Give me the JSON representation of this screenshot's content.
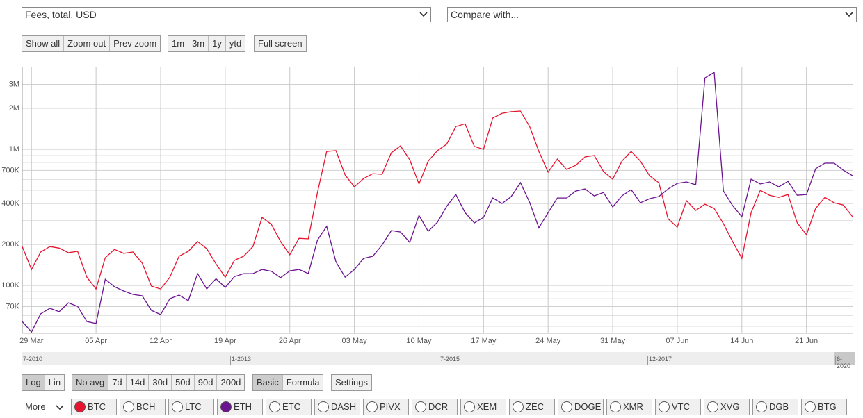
{
  "controls": {
    "metric": "Fees, total, USD",
    "compare": "Compare with...",
    "zoom_buttons": [
      "Show all",
      "Zoom out",
      "Prev zoom"
    ],
    "period_buttons": [
      "1m",
      "3m",
      "1y",
      "ytd"
    ],
    "fullscreen": "Full screen",
    "scale_buttons": [
      "Log",
      "Lin"
    ],
    "avg_buttons": [
      "No avg",
      "7d",
      "14d",
      "30d",
      "50d",
      "90d",
      "200d"
    ],
    "mode_buttons": [
      "Basic",
      "Formula"
    ],
    "settings": "Settings",
    "more": "More",
    "coins": [
      "BTC",
      "BCH",
      "LTC",
      "ETH",
      "ETC",
      "DASH",
      "PIVX",
      "DCR",
      "XEM",
      "ZEC",
      "DOGE",
      "XMR",
      "VTC",
      "XVG",
      "DGB",
      "BTG"
    ]
  },
  "navigator": {
    "labels": [
      "7-2010",
      "1-2013",
      "7-2015",
      "12-2017",
      "6-2020"
    ]
  },
  "chart_data": {
    "type": "line",
    "log_scale": true,
    "grid": true,
    "categories": [
      null,
      "29 Mar",
      null,
      null,
      null,
      null,
      null,
      null,
      "05 Apr",
      null,
      null,
      null,
      null,
      null,
      null,
      "12 Apr",
      null,
      null,
      null,
      null,
      null,
      null,
      "19 Apr",
      null,
      null,
      null,
      null,
      null,
      null,
      "26 Apr",
      null,
      null,
      null,
      null,
      null,
      null,
      "03 May",
      null,
      null,
      null,
      null,
      null,
      null,
      "10 May",
      null,
      null,
      null,
      null,
      null,
      null,
      "17 May",
      null,
      null,
      null,
      null,
      null,
      null,
      "24 May",
      null,
      null,
      null,
      null,
      null,
      null,
      "31 May",
      null,
      null,
      null,
      null,
      null,
      null,
      "07 Jun",
      null,
      null,
      null,
      null,
      null,
      null,
      "14 Jun",
      null,
      null,
      null,
      null,
      null,
      null,
      "21 Jun",
      null,
      null,
      null,
      null,
      null
    ],
    "ylim": [
      44500,
      4050000
    ],
    "yticks": [
      {
        "value": 70000,
        "label": "70K"
      },
      {
        "value": 100000,
        "label": "100K"
      },
      {
        "value": 200000,
        "label": "200K"
      },
      {
        "value": 400000,
        "label": "400K"
      },
      {
        "value": 700000,
        "label": "700K"
      },
      {
        "value": 1000000,
        "label": "1M"
      },
      {
        "value": 2000000,
        "label": "2M"
      },
      {
        "value": 3000000,
        "label": "3M"
      }
    ],
    "yminor": [
      50000,
      60000,
      80000,
      90000,
      300000,
      500000,
      600000,
      800000,
      900000
    ],
    "series": [
      {
        "name": "BTC",
        "color": "#e8132e",
        "values": [
          193000,
          131000,
          176000,
          193000,
          188000,
          174000,
          178000,
          115000,
          94300,
          160000,
          184000,
          172000,
          176000,
          146000,
          98900,
          94300,
          115000,
          164000,
          178000,
          210000,
          186000,
          144000,
          115000,
          153000,
          164000,
          193000,
          316000,
          281000,
          210000,
          168000,
          222000,
          220000,
          482000,
          965000,
          977000,
          648000,
          530000,
          610000,
          663000,
          655000,
          943000,
          1060000,
          838000,
          556000,
          819000,
          977000,
          1090000,
          1470000,
          1540000,
          1050000,
          1000000,
          1700000,
          1840000,
          1890000,
          1910000,
          1470000,
          965000,
          679000,
          848000,
          712000,
          763000,
          879000,
          900000,
          687000,
          603000,
          819000,
          965000,
          819000,
          640000,
          569000,
          309000,
          268000,
          419000,
          356000,
          395000,
          368000,
          284000,
          210000,
          158000,
          343000,
          500000,
          460000,
          444000,
          466000,
          288000,
          236000,
          368000,
          444000,
          405000,
          390000,
          320000
        ]
      },
      {
        "name": "ETH",
        "color": "#6b1390",
        "values": [
          54300,
          45500,
          61800,
          67900,
          64100,
          74500,
          70300,
          54300,
          52500,
          111000,
          97800,
          91100,
          85900,
          83900,
          65600,
          61100,
          80000,
          84900,
          77300,
          122000,
          94300,
          112000,
          96700,
          116000,
          122000,
          122000,
          131000,
          127000,
          114000,
          128000,
          131000,
          122000,
          215000,
          272000,
          149000,
          115000,
          131000,
          158000,
          164000,
          198000,
          253000,
          247000,
          207000,
          327000,
          250000,
          291000,
          381000,
          466000,
          343000,
          288000,
          316000,
          439000,
          400000,
          450000,
          569000,
          407000,
          265000,
          343000,
          439000,
          439000,
          494000,
          512000,
          455000,
          482000,
          377000,
          455000,
          506000,
          405000,
          434000,
          450000,
          512000,
          562000,
          576000,
          549000,
          3350000,
          3680000,
          494000,
          386000,
          320000,
          603000,
          556000,
          576000,
          530000,
          582000,
          460000,
          466000,
          720000,
          791000,
          791000,
          703000,
          640000
        ]
      }
    ]
  }
}
